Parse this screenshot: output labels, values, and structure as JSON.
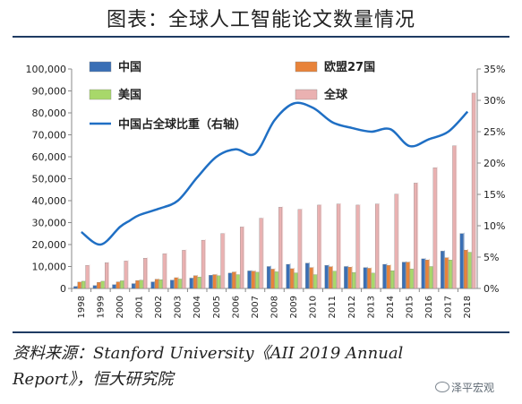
{
  "page": {
    "title": "图表：全球人工智能论文数量情况",
    "source": "资料来源：Stanford University《AII 2019 Annual Report》，恒大研究院",
    "watermark": "泽平宏观",
    "watermark_icon": "wechat-icon"
  },
  "chart_data": {
    "type": "bar",
    "title": "",
    "xlabel": "",
    "ylabel": "",
    "categories": [
      "1998",
      "1999",
      "2000",
      "2001",
      "2002",
      "2003",
      "2004",
      "2005",
      "2006",
      "2007",
      "2008",
      "2009",
      "2010",
      "2011",
      "2012",
      "2013",
      "2014",
      "2015",
      "2016",
      "2017",
      "2018"
    ],
    "y_ticks": [
      "0",
      "10,000",
      "20,000",
      "30,000",
      "40,000",
      "50,000",
      "60,000",
      "70,000",
      "80,000",
      "90,000",
      "100,000"
    ],
    "y2_ticks": [
      "0%",
      "5%",
      "10%",
      "15%",
      "20%",
      "25%",
      "30%",
      "35%"
    ],
    "ylim": [
      0,
      100000
    ],
    "y2lim": [
      0,
      35
    ],
    "grid": false,
    "legend_position": "top",
    "series": [
      {
        "name": "中国",
        "type": "bar",
        "axis": "left",
        "color": "#3a6fb5",
        "values": [
          900,
          1300,
          1700,
          2200,
          3000,
          3800,
          4700,
          6000,
          7000,
          8000,
          10000,
          11000,
          11500,
          10500,
          10000,
          9500,
          11000,
          12000,
          13500,
          17000,
          25000
        ]
      },
      {
        "name": "欧盟27国",
        "type": "bar",
        "axis": "left",
        "color": "#e8833a",
        "values": [
          2900,
          2800,
          3000,
          3600,
          4200,
          4900,
          5800,
          6300,
          7500,
          7900,
          8800,
          9000,
          9500,
          9900,
          9700,
          9200,
          10500,
          12000,
          13000,
          14000,
          17500
        ]
      },
      {
        "name": "美国",
        "type": "bar",
        "axis": "left",
        "color": "#a8d86a",
        "values": [
          3300,
          3300,
          3500,
          3800,
          4000,
          4300,
          5200,
          5800,
          6300,
          7400,
          7600,
          7100,
          6300,
          7900,
          7300,
          7000,
          8100,
          8900,
          10000,
          13000,
          16500
        ]
      },
      {
        "name": "全球",
        "type": "bar",
        "axis": "left",
        "color": "#eab1b1",
        "values": [
          10500,
          11700,
          12500,
          13800,
          15800,
          17400,
          22000,
          25000,
          28000,
          32000,
          37000,
          36000,
          38000,
          38500,
          38000,
          38500,
          43000,
          48000,
          55000,
          65000,
          89000
        ]
      },
      {
        "name": "中国占全球比重（右轴）",
        "type": "line",
        "axis": "right",
        "color": "#1f6fc4",
        "x": [
          1998,
          1999,
          2000,
          2000.5,
          2001,
          2002,
          2003,
          2004,
          2005,
          2006,
          2007,
          2008,
          2009,
          2010,
          2011,
          2012,
          2013,
          2014,
          2015,
          2016,
          2017,
          2018
        ],
        "values": [
          9.0,
          7.0,
          9.8,
          10.8,
          11.7,
          12.7,
          14.0,
          17.7,
          21.0,
          22.2,
          21.5,
          26.8,
          29.5,
          28.8,
          26.5,
          25.6,
          25.0,
          25.4,
          22.7,
          23.8,
          25.0,
          28.2
        ]
      }
    ]
  }
}
